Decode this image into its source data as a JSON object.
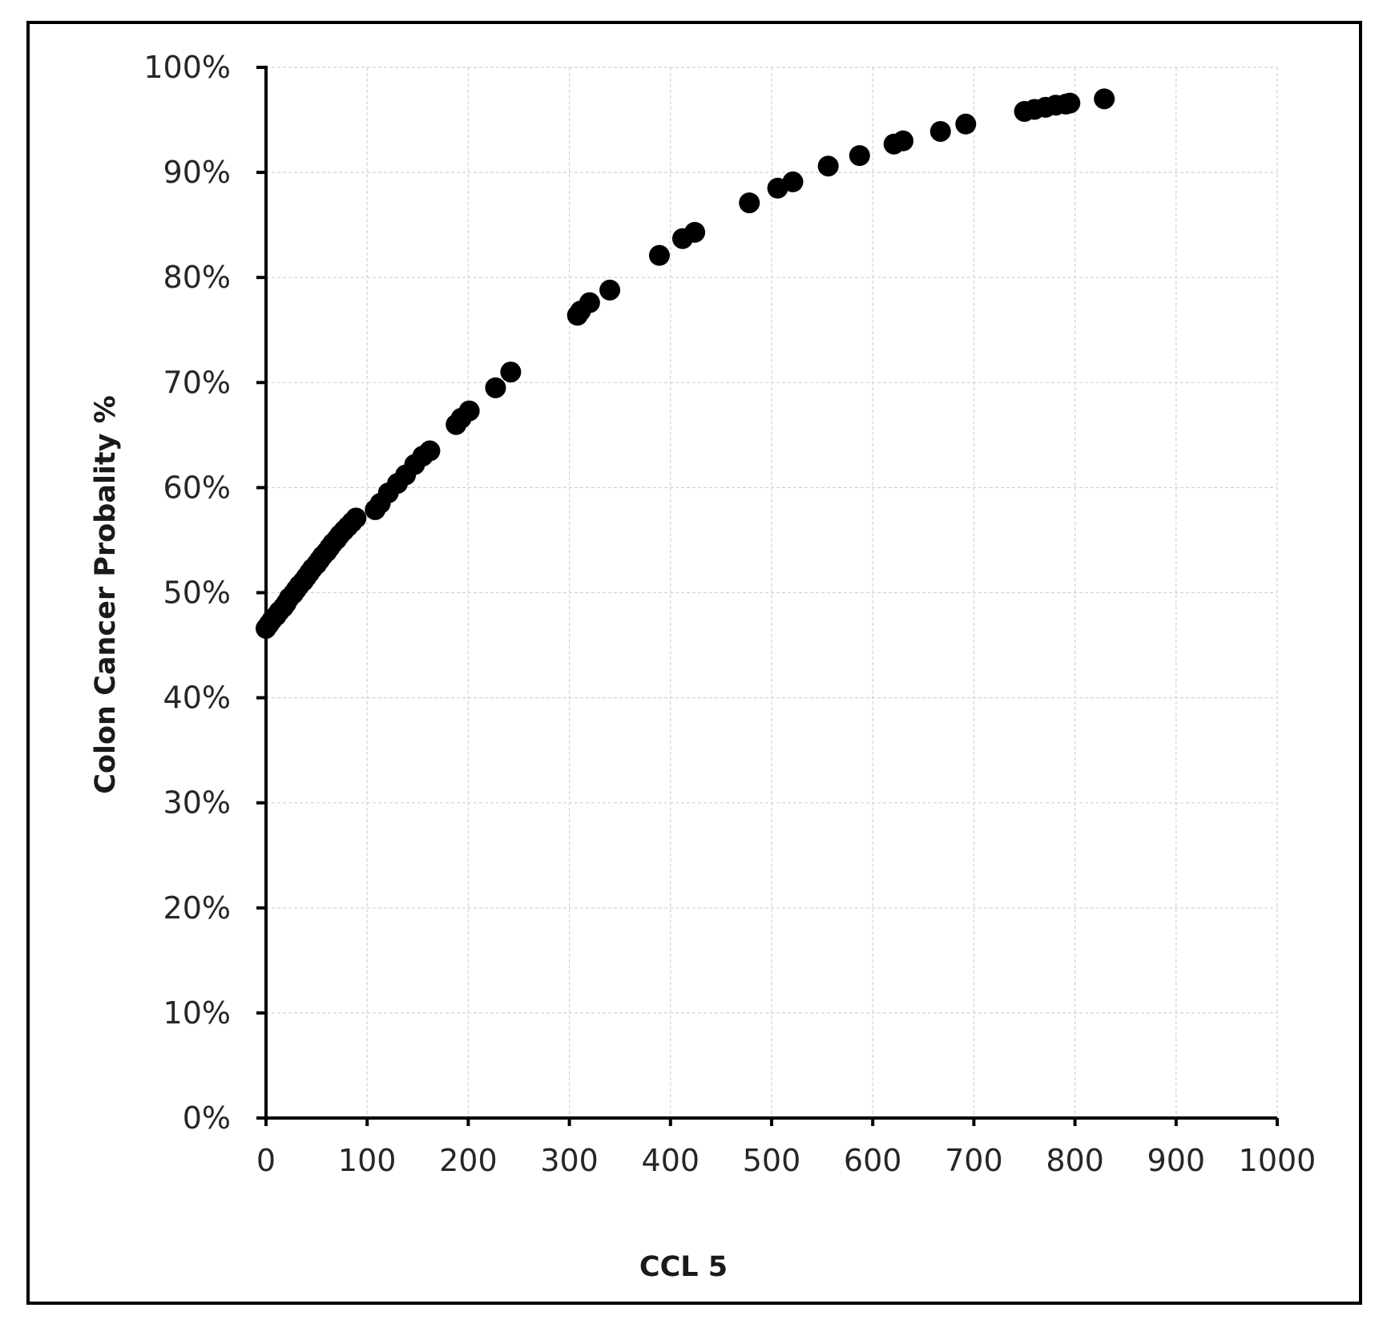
{
  "chart_data": {
    "type": "scatter",
    "title": "",
    "xlabel": "CCL 5",
    "ylabel": "Colon Cancer Probality  %",
    "xlim": [
      0,
      1000
    ],
    "ylim": [
      0,
      100
    ],
    "x_ticks": [
      "0",
      "100",
      "200",
      "300",
      "400",
      "500",
      "600",
      "700",
      "800",
      "900",
      "1000"
    ],
    "y_ticks": [
      "0%",
      "10%",
      "20%",
      "30%",
      "40%",
      "50%",
      "60%",
      "70%",
      "80%",
      "90%",
      "100%"
    ],
    "grid": true,
    "legend": "none",
    "marker_color": "#000000",
    "series": [
      {
        "x": [
          0,
          3,
          6,
          10,
          13,
          17,
          20,
          23,
          27,
          30,
          33,
          37,
          40,
          43,
          46,
          50,
          53,
          56,
          60,
          63,
          66,
          70,
          73,
          77,
          81,
          85,
          89,
          108,
          113,
          121,
          130,
          138,
          147,
          155,
          162,
          188,
          193,
          201,
          227,
          242,
          308,
          311,
          320,
          340,
          389,
          412,
          424,
          478,
          506,
          521,
          556,
          587,
          621,
          630,
          667,
          692,
          750,
          760,
          771,
          781,
          791,
          795,
          829
        ],
        "y": [
          46.6,
          47.0,
          47.4,
          47.8,
          48.2,
          48.6,
          49.0,
          49.5,
          49.9,
          50.3,
          50.7,
          51.1,
          51.5,
          51.9,
          52.3,
          52.7,
          53.1,
          53.5,
          53.9,
          54.3,
          54.7,
          55.1,
          55.5,
          55.9,
          56.3,
          56.7,
          57.1,
          57.9,
          58.5,
          59.5,
          60.4,
          61.2,
          62.2,
          63.0,
          63.5,
          66.0,
          66.6,
          67.3,
          69.5,
          71.0,
          76.4,
          76.8,
          77.6,
          78.8,
          82.1,
          83.7,
          84.3,
          87.1,
          88.5,
          89.1,
          90.6,
          91.6,
          92.7,
          93.0,
          93.9,
          94.6,
          95.8,
          96.0,
          96.2,
          96.4,
          96.5,
          96.6,
          97.0
        ]
      }
    ]
  }
}
